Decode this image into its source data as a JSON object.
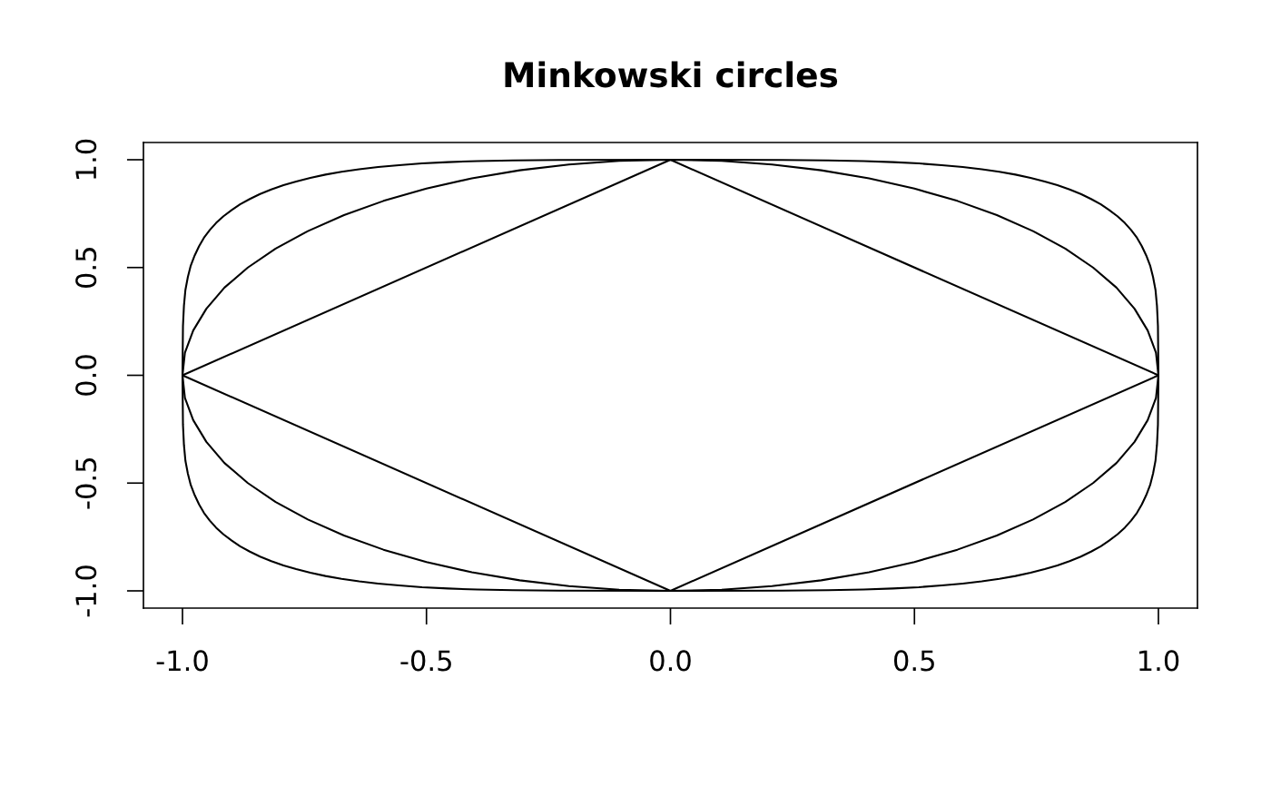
{
  "chart_data": {
    "type": "line",
    "title": "Minkowski circles",
    "xlim": [
      -1.08,
      1.08
    ],
    "ylim": [
      -1.08,
      1.08
    ],
    "xticks": [
      {
        "value": -1,
        "label": "-1.0"
      },
      {
        "value": -0.5,
        "label": "-0.5"
      },
      {
        "value": 0,
        "label": "0.0"
      },
      {
        "value": 0.5,
        "label": "0.5"
      },
      {
        "value": 1,
        "label": "1.0"
      }
    ],
    "yticks": [
      {
        "value": -1,
        "label": "-1.0"
      },
      {
        "value": -0.5,
        "label": "-0.5"
      },
      {
        "value": 0,
        "label": "0.0"
      },
      {
        "value": 0.5,
        "label": "0.5"
      },
      {
        "value": 1,
        "label": "1.0"
      }
    ],
    "grid": false,
    "series": [
      {
        "color": "#000000",
        "x": [
          -1,
          0,
          1
        ],
        "values": [
          0,
          1,
          0
        ]
      },
      {
        "color": "#000000",
        "x": [
          -1,
          0,
          1
        ],
        "values": [
          0,
          -1,
          0
        ]
      },
      {
        "color": "#000000",
        "x": [
          -1,
          -0.995,
          -0.978,
          -0.951,
          -0.914,
          -0.866,
          -0.809,
          -0.743,
          -0.669,
          -0.588,
          -0.5,
          -0.407,
          -0.309,
          -0.208,
          -0.105,
          0,
          0.105,
          0.208,
          0.309,
          0.407,
          0.5,
          0.588,
          0.669,
          0.743,
          0.809,
          0.866,
          0.914,
          0.951,
          0.978,
          0.995,
          1
        ],
        "values": [
          0,
          0.105,
          0.208,
          0.309,
          0.407,
          0.5,
          0.588,
          0.669,
          0.743,
          0.809,
          0.866,
          0.914,
          0.951,
          0.978,
          0.995,
          1,
          0.995,
          0.978,
          0.951,
          0.914,
          0.866,
          0.809,
          0.743,
          0.669,
          0.588,
          0.5,
          0.407,
          0.309,
          0.208,
          0.105,
          0
        ]
      },
      {
        "color": "#000000",
        "x": [
          -1,
          -0.995,
          -0.978,
          -0.951,
          -0.914,
          -0.866,
          -0.809,
          -0.743,
          -0.669,
          -0.588,
          -0.5,
          -0.407,
          -0.309,
          -0.208,
          -0.105,
          0,
          0.105,
          0.208,
          0.309,
          0.407,
          0.5,
          0.588,
          0.669,
          0.743,
          0.809,
          0.866,
          0.914,
          0.951,
          0.978,
          0.995,
          1
        ],
        "values": [
          0,
          -0.105,
          -0.208,
          -0.309,
          -0.407,
          -0.5,
          -0.588,
          -0.669,
          -0.743,
          -0.809,
          -0.866,
          -0.914,
          -0.951,
          -0.978,
          -0.995,
          -1,
          -0.995,
          -0.978,
          -0.951,
          -0.914,
          -0.866,
          -0.809,
          -0.743,
          -0.669,
          -0.588,
          -0.5,
          -0.407,
          -0.309,
          -0.208,
          -0.105,
          0
        ]
      },
      {
        "color": "#000000",
        "x": [
          -1,
          -0.999,
          -0.997,
          -0.994,
          -0.989,
          -0.983,
          -0.975,
          -0.966,
          -0.956,
          -0.944,
          -0.931,
          -0.916,
          -0.899,
          -0.882,
          -0.862,
          -0.841,
          -0.818,
          -0.793,
          -0.767,
          -0.738,
          -0.707,
          -0.674,
          -0.638,
          -0.599,
          -0.556,
          -0.509,
          -0.456,
          -0.396,
          -0.323,
          -0.229,
          0,
          0.229,
          0.323,
          0.396,
          0.456,
          0.509,
          0.556,
          0.599,
          0.638,
          0.674,
          0.707,
          0.738,
          0.767,
          0.793,
          0.818,
          0.841,
          0.862,
          0.882,
          0.899,
          0.916,
          0.931,
          0.944,
          0.956,
          0.966,
          0.975,
          0.983,
          0.989,
          0.994,
          0.997,
          0.999,
          1
        ],
        "values": [
          0,
          0.229,
          0.323,
          0.396,
          0.456,
          0.509,
          0.556,
          0.599,
          0.638,
          0.674,
          0.707,
          0.738,
          0.767,
          0.793,
          0.818,
          0.841,
          0.862,
          0.882,
          0.899,
          0.916,
          0.931,
          0.944,
          0.956,
          0.966,
          0.975,
          0.983,
          0.989,
          0.994,
          0.997,
          0.999,
          1,
          0.999,
          0.997,
          0.994,
          0.989,
          0.983,
          0.975,
          0.966,
          0.956,
          0.944,
          0.931,
          0.916,
          0.899,
          0.882,
          0.862,
          0.841,
          0.818,
          0.793,
          0.767,
          0.738,
          0.707,
          0.674,
          0.638,
          0.599,
          0.556,
          0.509,
          0.456,
          0.396,
          0.323,
          0.229,
          0
        ]
      },
      {
        "color": "#000000",
        "x": [
          -1,
          -0.999,
          -0.997,
          -0.994,
          -0.989,
          -0.983,
          -0.975,
          -0.966,
          -0.956,
          -0.944,
          -0.931,
          -0.916,
          -0.899,
          -0.882,
          -0.862,
          -0.841,
          -0.818,
          -0.793,
          -0.767,
          -0.738,
          -0.707,
          -0.674,
          -0.638,
          -0.599,
          -0.556,
          -0.509,
          -0.456,
          -0.396,
          -0.323,
          -0.229,
          0,
          0.229,
          0.323,
          0.396,
          0.456,
          0.509,
          0.556,
          0.599,
          0.638,
          0.674,
          0.707,
          0.738,
          0.767,
          0.793,
          0.818,
          0.841,
          0.862,
          0.882,
          0.899,
          0.916,
          0.931,
          0.944,
          0.956,
          0.966,
          0.975,
          0.983,
          0.989,
          0.994,
          0.997,
          0.999,
          1
        ],
        "values": [
          0,
          -0.229,
          -0.323,
          -0.396,
          -0.456,
          -0.509,
          -0.556,
          -0.599,
          -0.638,
          -0.674,
          -0.707,
          -0.738,
          -0.767,
          -0.793,
          -0.818,
          -0.841,
          -0.862,
          -0.882,
          -0.899,
          -0.916,
          -0.931,
          -0.944,
          -0.956,
          -0.966,
          -0.975,
          -0.983,
          -0.989,
          -0.994,
          -0.997,
          -0.999,
          -1,
          -0.999,
          -0.997,
          -0.994,
          -0.989,
          -0.983,
          -0.975,
          -0.966,
          -0.956,
          -0.944,
          -0.931,
          -0.916,
          -0.899,
          -0.882,
          -0.862,
          -0.841,
          -0.818,
          -0.793,
          -0.767,
          -0.738,
          -0.707,
          -0.674,
          -0.638,
          -0.599,
          -0.556,
          -0.509,
          -0.456,
          -0.396,
          -0.323,
          -0.229,
          0
        ]
      }
    ]
  }
}
